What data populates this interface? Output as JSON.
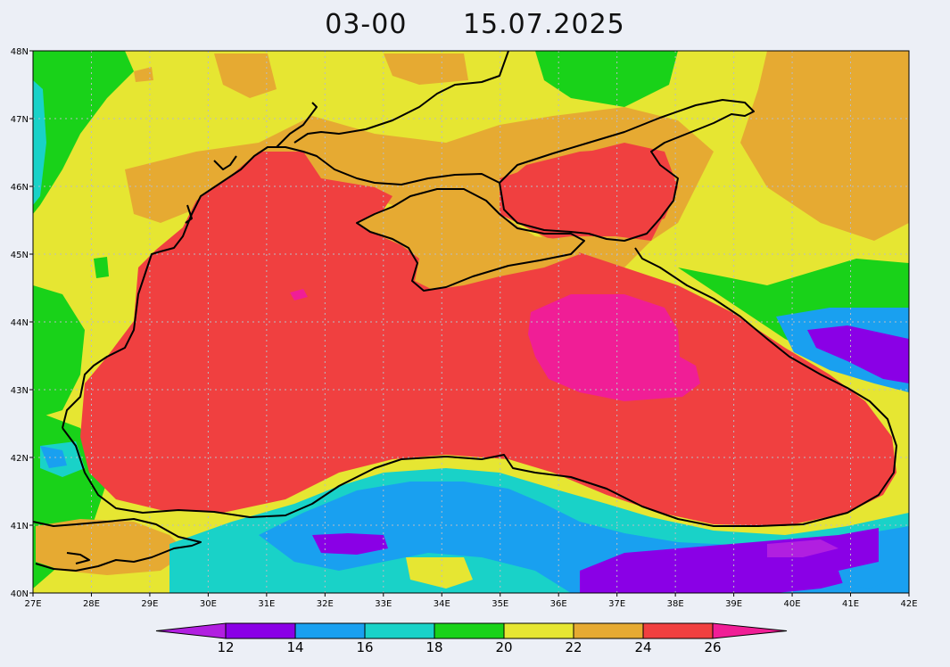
{
  "title": {
    "time": "03-00",
    "date": "15.07.2025"
  },
  "map": {
    "lon_range": [
      27,
      42
    ],
    "lat_range": [
      40,
      48
    ],
    "lon_ticks": [
      "27E",
      "28E",
      "29E",
      "30E",
      "31E",
      "32E",
      "33E",
      "34E",
      "35E",
      "36E",
      "37E",
      "38E",
      "39E",
      "40E",
      "41E",
      "42E"
    ],
    "lat_ticks": [
      "40N",
      "41N",
      "42N",
      "43N",
      "44N",
      "45N",
      "46N",
      "47N",
      "48N"
    ]
  },
  "colorbar": {
    "labels": [
      "12",
      "14",
      "16",
      "18",
      "20",
      "22",
      "24",
      "26"
    ],
    "bins": [
      {
        "range": "10-12",
        "color": "#b11fe0"
      },
      {
        "range": "12-14",
        "color": "#8a00e6"
      },
      {
        "range": "14-16",
        "color": "#19a0f0"
      },
      {
        "range": "16-18",
        "color": "#19d2c8"
      },
      {
        "range": "18-20",
        "color": "#19d219"
      },
      {
        "range": "20-22",
        "color": "#e6e632"
      },
      {
        "range": "22-24",
        "color": "#e6aa32"
      },
      {
        "range": "24-26",
        "color": "#f04040"
      },
      {
        "range": "26-28",
        "color": "#f01e96"
      }
    ]
  }
}
